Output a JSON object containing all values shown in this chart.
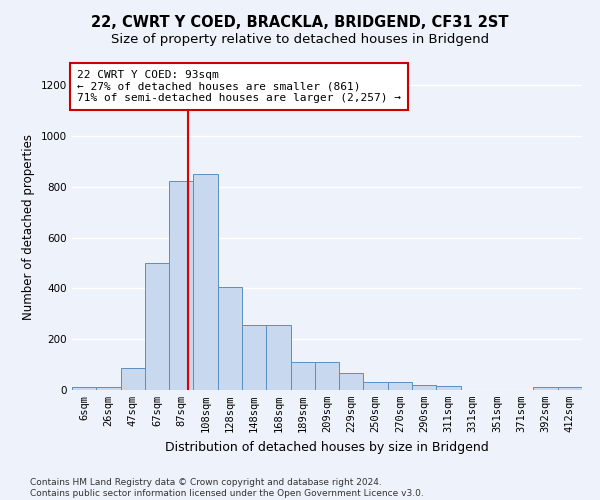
{
  "title": "22, CWRT Y COED, BRACKLA, BRIDGEND, CF31 2ST",
  "subtitle": "Size of property relative to detached houses in Bridgend",
  "xlabel": "Distribution of detached houses by size in Bridgend",
  "ylabel": "Number of detached properties",
  "footer_line1": "Contains HM Land Registry data © Crown copyright and database right 2024.",
  "footer_line2": "Contains public sector information licensed under the Open Government Licence v3.0.",
  "annotation_line1": "22 CWRT Y COED: 93sqm",
  "annotation_line2": "← 27% of detached houses are smaller (861)",
  "annotation_line3": "71% of semi-detached houses are larger (2,257) →",
  "property_size_sqm": 93,
  "bar_color": "#c8d9ef",
  "bar_edge_color": "#5a8fc3",
  "red_line_color": "#dd0000",
  "background_color": "#eef2fa",
  "annotation_box_color": "#ffffff",
  "annotation_box_edge": "#cc0000",
  "categories": [
    "6sqm",
    "26sqm",
    "47sqm",
    "67sqm",
    "87sqm",
    "108sqm",
    "128sqm",
    "148sqm",
    "168sqm",
    "189sqm",
    "209sqm",
    "229sqm",
    "250sqm",
    "270sqm",
    "290sqm",
    "311sqm",
    "331sqm",
    "351sqm",
    "371sqm",
    "392sqm",
    "412sqm"
  ],
  "values": [
    10,
    10,
    88,
    500,
    825,
    850,
    405,
    255,
    255,
    110,
    110,
    65,
    30,
    30,
    18,
    15,
    0,
    0,
    0,
    10,
    10
  ],
  "ylim": [
    0,
    1280
  ],
  "yticks": [
    0,
    200,
    400,
    600,
    800,
    1000,
    1200
  ],
  "grid_color": "#ffffff",
  "title_fontsize": 10.5,
  "subtitle_fontsize": 9.5,
  "tick_fontsize": 7.5,
  "ylabel_fontsize": 8.5,
  "xlabel_fontsize": 9,
  "annotation_fontsize": 8,
  "footer_fontsize": 6.5
}
